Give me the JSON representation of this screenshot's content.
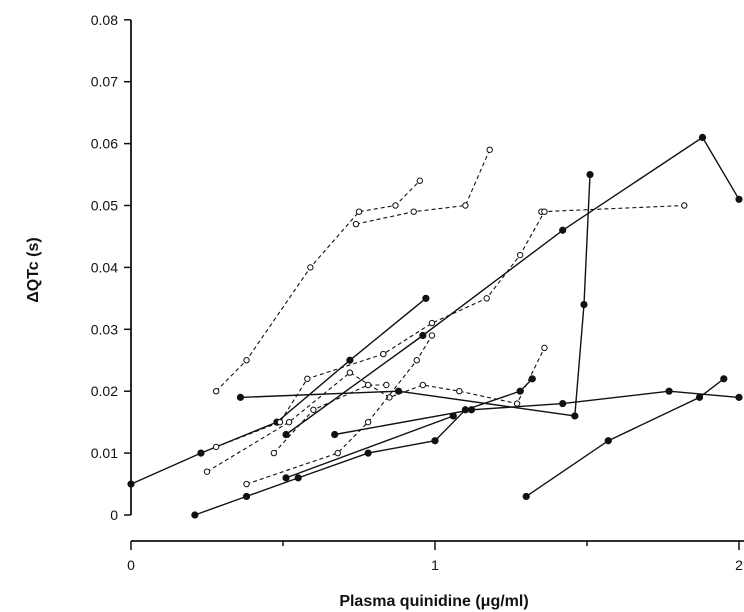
{
  "chart_data": {
    "type": "line",
    "title": "",
    "xlabel": "Plasma quinidine (μg/ml)",
    "ylabel": "ΔQTc (s)",
    "xlim": [
      0,
      2
    ],
    "ylim": [
      0,
      0.08
    ],
    "x_ticks": [
      "0",
      "1",
      "2"
    ],
    "y_ticks": [
      "0",
      "0.01",
      "0.02",
      "0.03",
      "0.04",
      "0.05",
      "0.06",
      "0.07",
      "0.08"
    ],
    "grid": false,
    "legend": "none",
    "series": [
      {
        "style": "solid-filled",
        "points": [
          [
            0.0,
            0.005
          ],
          [
            0.23,
            0.01
          ],
          [
            0.48,
            0.015
          ],
          [
            0.72,
            0.025
          ],
          [
            0.97,
            0.035
          ]
        ]
      },
      {
        "style": "solid-filled",
        "points": [
          [
            0.21,
            0.0
          ],
          [
            0.38,
            0.003
          ],
          [
            0.55,
            0.006
          ],
          [
            0.78,
            0.01
          ],
          [
            1.0,
            0.012
          ],
          [
            1.1,
            0.017
          ],
          [
            1.28,
            0.02
          ],
          [
            1.32,
            0.022
          ]
        ]
      },
      {
        "style": "solid-filled",
        "points": [
          [
            0.36,
            0.019
          ],
          [
            0.88,
            0.02
          ],
          [
            1.46,
            0.016
          ],
          [
            1.49,
            0.034
          ],
          [
            1.51,
            0.055
          ]
        ]
      },
      {
        "style": "solid-filled",
        "points": [
          [
            0.51,
            0.013
          ],
          [
            0.96,
            0.029
          ],
          [
            1.42,
            0.046
          ],
          [
            1.88,
            0.061
          ],
          [
            2.0,
            0.051
          ]
        ]
      },
      {
        "style": "solid-filled",
        "points": [
          [
            0.51,
            0.006
          ],
          [
            1.06,
            0.016
          ]
        ]
      },
      {
        "style": "solid-filled",
        "points": [
          [
            0.67,
            0.013
          ],
          [
            1.12,
            0.017
          ],
          [
            1.42,
            0.018
          ],
          [
            1.77,
            0.02
          ],
          [
            2.0,
            0.019
          ]
        ]
      },
      {
        "style": "solid-filled",
        "points": [
          [
            1.3,
            0.003
          ],
          [
            1.57,
            0.012
          ],
          [
            1.87,
            0.019
          ],
          [
            1.95,
            0.022
          ]
        ]
      },
      {
        "style": "dashed-open",
        "points": [
          [
            0.28,
            0.02
          ],
          [
            0.38,
            0.025
          ],
          [
            0.59,
            0.04
          ],
          [
            0.75,
            0.049
          ],
          [
            0.87,
            0.05
          ],
          [
            0.95,
            0.054
          ]
        ]
      },
      {
        "style": "dashed-open",
        "points": [
          [
            0.74,
            0.047
          ],
          [
            0.93,
            0.049
          ],
          [
            1.1,
            0.05
          ],
          [
            1.18,
            0.059
          ]
        ]
      },
      {
        "style": "dashed-open",
        "points": [
          [
            1.35,
            0.049
          ],
          [
            1.82,
            0.05
          ]
        ]
      },
      {
        "style": "dashed-open",
        "points": [
          [
            0.28,
            0.011
          ],
          [
            0.49,
            0.015
          ],
          [
            0.58,
            0.022
          ],
          [
            0.83,
            0.026
          ],
          [
            0.99,
            0.031
          ],
          [
            1.17,
            0.035
          ],
          [
            1.28,
            0.042
          ],
          [
            1.36,
            0.049
          ]
        ]
      },
      {
        "style": "dashed-open",
        "points": [
          [
            0.25,
            0.007
          ],
          [
            0.52,
            0.015
          ],
          [
            0.72,
            0.023
          ],
          [
            0.85,
            0.019
          ],
          [
            0.96,
            0.021
          ],
          [
            1.08,
            0.02
          ],
          [
            1.27,
            0.018
          ],
          [
            1.36,
            0.027
          ]
        ]
      },
      {
        "style": "dashed-open",
        "points": [
          [
            0.38,
            0.005
          ],
          [
            0.68,
            0.01
          ],
          [
            0.78,
            0.015
          ],
          [
            0.94,
            0.025
          ],
          [
            0.99,
            0.029
          ]
        ]
      },
      {
        "style": "dashed-open",
        "points": [
          [
            0.47,
            0.01
          ],
          [
            0.6,
            0.017
          ],
          [
            0.78,
            0.021
          ],
          [
            0.84,
            0.021
          ]
        ]
      }
    ]
  }
}
